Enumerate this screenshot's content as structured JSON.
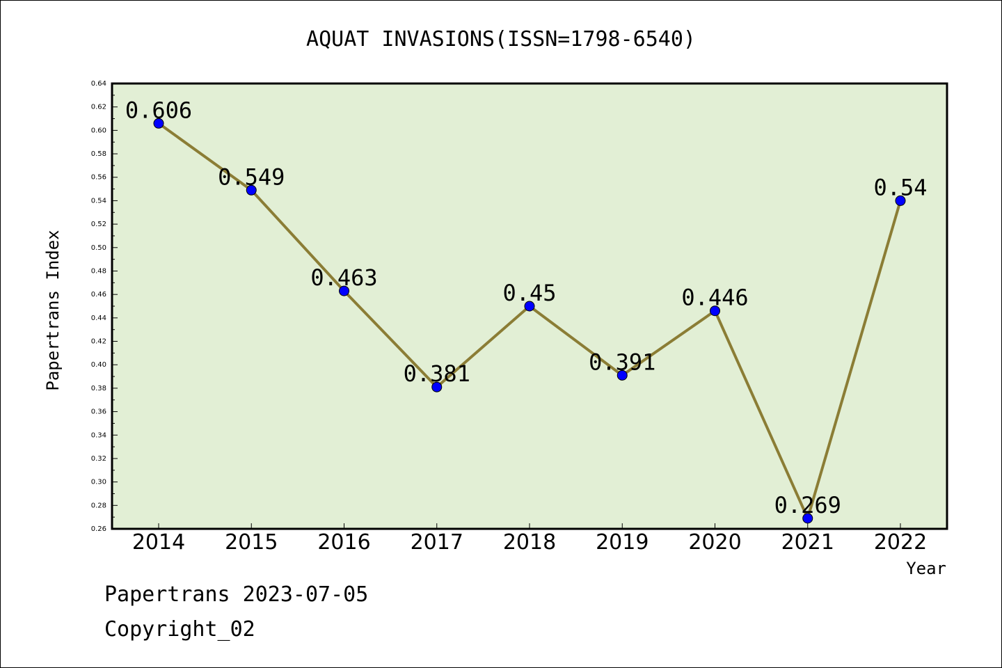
{
  "chart_data": {
    "type": "line",
    "title": "AQUAT INVASIONS(ISSN=1798-6540)",
    "xlabel": "Year",
    "ylabel": "Papertrans Index",
    "categories": [
      "2014",
      "2015",
      "2016",
      "2017",
      "2018",
      "2019",
      "2020",
      "2021",
      "2022"
    ],
    "series": [
      {
        "values": [
          0.606,
          0.549,
          0.463,
          0.381,
          0.45,
          0.391,
          0.446,
          0.269,
          0.54
        ],
        "labels": [
          "0.606",
          "0.549",
          "0.463",
          "0.381",
          "0.45",
          "0.391",
          "0.446",
          "0.269",
          "0.54"
        ],
        "line_color": "#8b7d35",
        "marker_color": "#0000ff"
      }
    ],
    "ylim": [
      0.26,
      0.64
    ],
    "yticks": [
      "0.26",
      "0.28",
      "0.30",
      "0.32",
      "0.34",
      "0.36",
      "0.38",
      "0.40",
      "0.42",
      "0.44",
      "0.46",
      "0.48",
      "0.50",
      "0.52",
      "0.54",
      "0.56",
      "0.58",
      "0.60",
      "0.62",
      "0.64"
    ],
    "plot_background": "#e2efd5",
    "grid": false,
    "legend": "none"
  },
  "footer": {
    "line1": "Papertrans 2023-07-05",
    "line2": "Copyright_02"
  }
}
